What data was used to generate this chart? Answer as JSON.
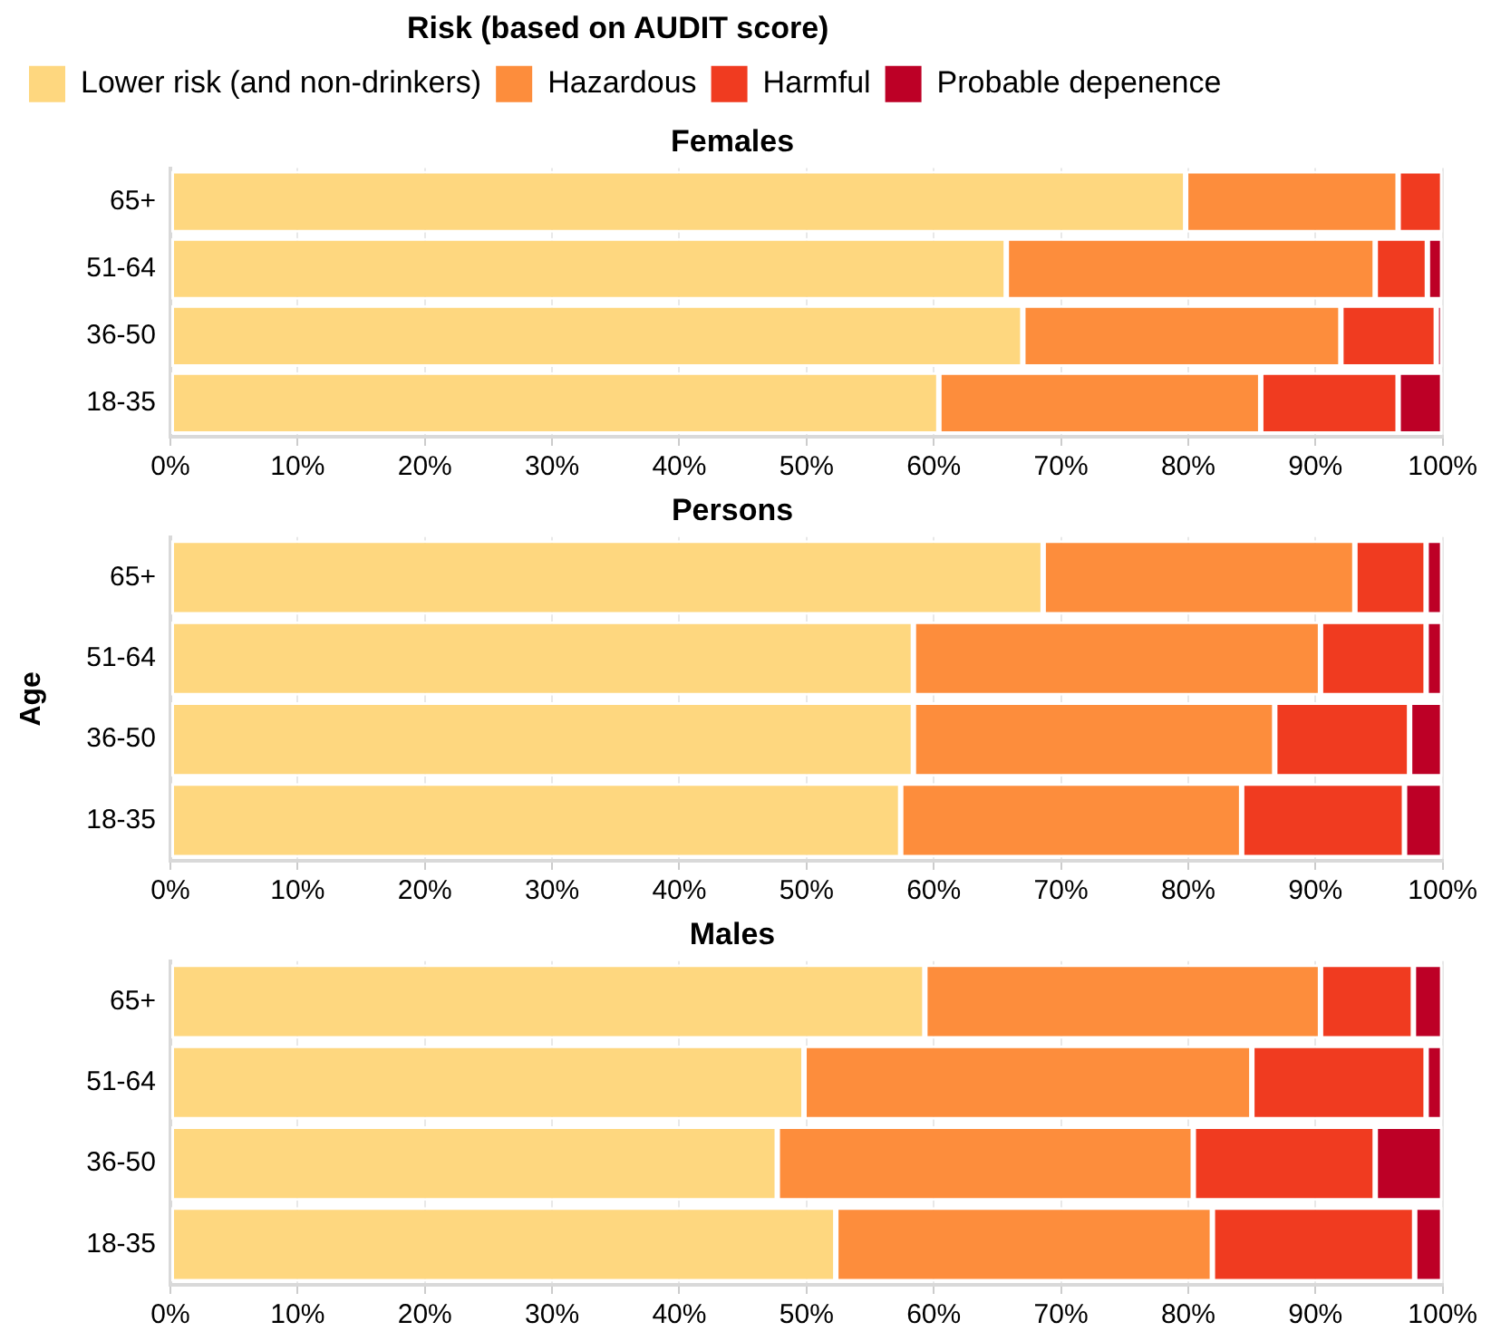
{
  "chart_data": [
    {
      "type": "bar",
      "orientation": "horizontal",
      "stacked": true,
      "title": "Females",
      "legend_title": "Risk (based on AUDIT score)",
      "legend": "top left",
      "grid": "x",
      "categories": [
        "65+",
        "51-64",
        "36-50",
        "18-35"
      ],
      "xlim": [
        0,
        100
      ],
      "xticks": [
        {
          "value": 0,
          "label": "0%"
        },
        {
          "value": 10,
          "label": "10%"
        },
        {
          "value": 20,
          "label": "20%"
        },
        {
          "value": 30,
          "label": "30%"
        },
        {
          "value": 40,
          "label": "40%"
        },
        {
          "value": 50,
          "label": "50%"
        },
        {
          "value": 60,
          "label": "60%"
        },
        {
          "value": 70,
          "label": "70%"
        },
        {
          "value": 80,
          "label": "80%"
        },
        {
          "value": 90,
          "label": "90%"
        },
        {
          "value": 100,
          "label": "100%"
        }
      ],
      "series": [
        {
          "name": "Lower risk (and non-drinkers)",
          "color": "#fed77f",
          "values": [
            79.8,
            65.7,
            67.0,
            60.4
          ]
        },
        {
          "name": "Hazardous",
          "color": "#fd8d3c",
          "values": [
            16.7,
            29.0,
            25.0,
            25.3
          ]
        },
        {
          "name": "Harmful",
          "color": "#f03b20",
          "values": [
            3.5,
            4.1,
            7.5,
            10.8
          ]
        },
        {
          "name": "Probable depenence",
          "color": "#bd0026",
          "values": [
            0,
            1.2,
            0.5,
            3.5
          ]
        }
      ]
    },
    {
      "type": "bar",
      "orientation": "horizontal",
      "stacked": true,
      "title": "Persons",
      "ylabel": "Age",
      "grid": "x",
      "categories": [
        "65+",
        "51-64",
        "36-50",
        "18-35"
      ],
      "xlim": [
        0,
        100
      ],
      "xticks": [
        {
          "value": 0,
          "label": "0%"
        },
        {
          "value": 10,
          "label": "10%"
        },
        {
          "value": 20,
          "label": "20%"
        },
        {
          "value": 30,
          "label": "30%"
        },
        {
          "value": 40,
          "label": "40%"
        },
        {
          "value": 50,
          "label": "50%"
        },
        {
          "value": 60,
          "label": "60%"
        },
        {
          "value": 70,
          "label": "70%"
        },
        {
          "value": 80,
          "label": "80%"
        },
        {
          "value": 90,
          "label": "90%"
        },
        {
          "value": 100,
          "label": "100%"
        }
      ],
      "series": [
        {
          "color": "#fed77f",
          "values": [
            68.6,
            58.4,
            58.4,
            57.4
          ]
        },
        {
          "color": "#fd8d3c",
          "values": [
            24.5,
            32.0,
            28.4,
            26.8
          ]
        },
        {
          "color": "#f03b20",
          "values": [
            5.6,
            8.3,
            10.6,
            12.8
          ]
        },
        {
          "color": "#bd0026",
          "values": [
            1.3,
            1.3,
            2.6,
            3.0
          ]
        }
      ]
    },
    {
      "type": "bar",
      "orientation": "horizontal",
      "stacked": true,
      "title": "Males",
      "grid": "x",
      "categories": [
        "65+",
        "51-64",
        "36-50",
        "18-35"
      ],
      "xlim": [
        0,
        100
      ],
      "xticks": [
        {
          "value": 0,
          "label": "0%"
        },
        {
          "value": 10,
          "label": "10%"
        },
        {
          "value": 20,
          "label": "20%"
        },
        {
          "value": 30,
          "label": "30%"
        },
        {
          "value": 40,
          "label": "40%"
        },
        {
          "value": 50,
          "label": "50%"
        },
        {
          "value": 60,
          "label": "60%"
        },
        {
          "value": 70,
          "label": "70%"
        },
        {
          "value": 80,
          "label": "80%"
        },
        {
          "value": 90,
          "label": "90%"
        },
        {
          "value": 100,
          "label": "100%"
        }
      ],
      "series": [
        {
          "color": "#fed77f",
          "values": [
            59.3,
            49.8,
            47.7,
            52.3
          ]
        },
        {
          "color": "#fd8d3c",
          "values": [
            31.1,
            35.2,
            32.7,
            29.6
          ]
        },
        {
          "color": "#f03b20",
          "values": [
            7.3,
            13.7,
            14.3,
            15.9
          ]
        },
        {
          "color": "#bd0026",
          "values": [
            2.3,
            1.3,
            5.3,
            2.2
          ]
        }
      ]
    }
  ]
}
